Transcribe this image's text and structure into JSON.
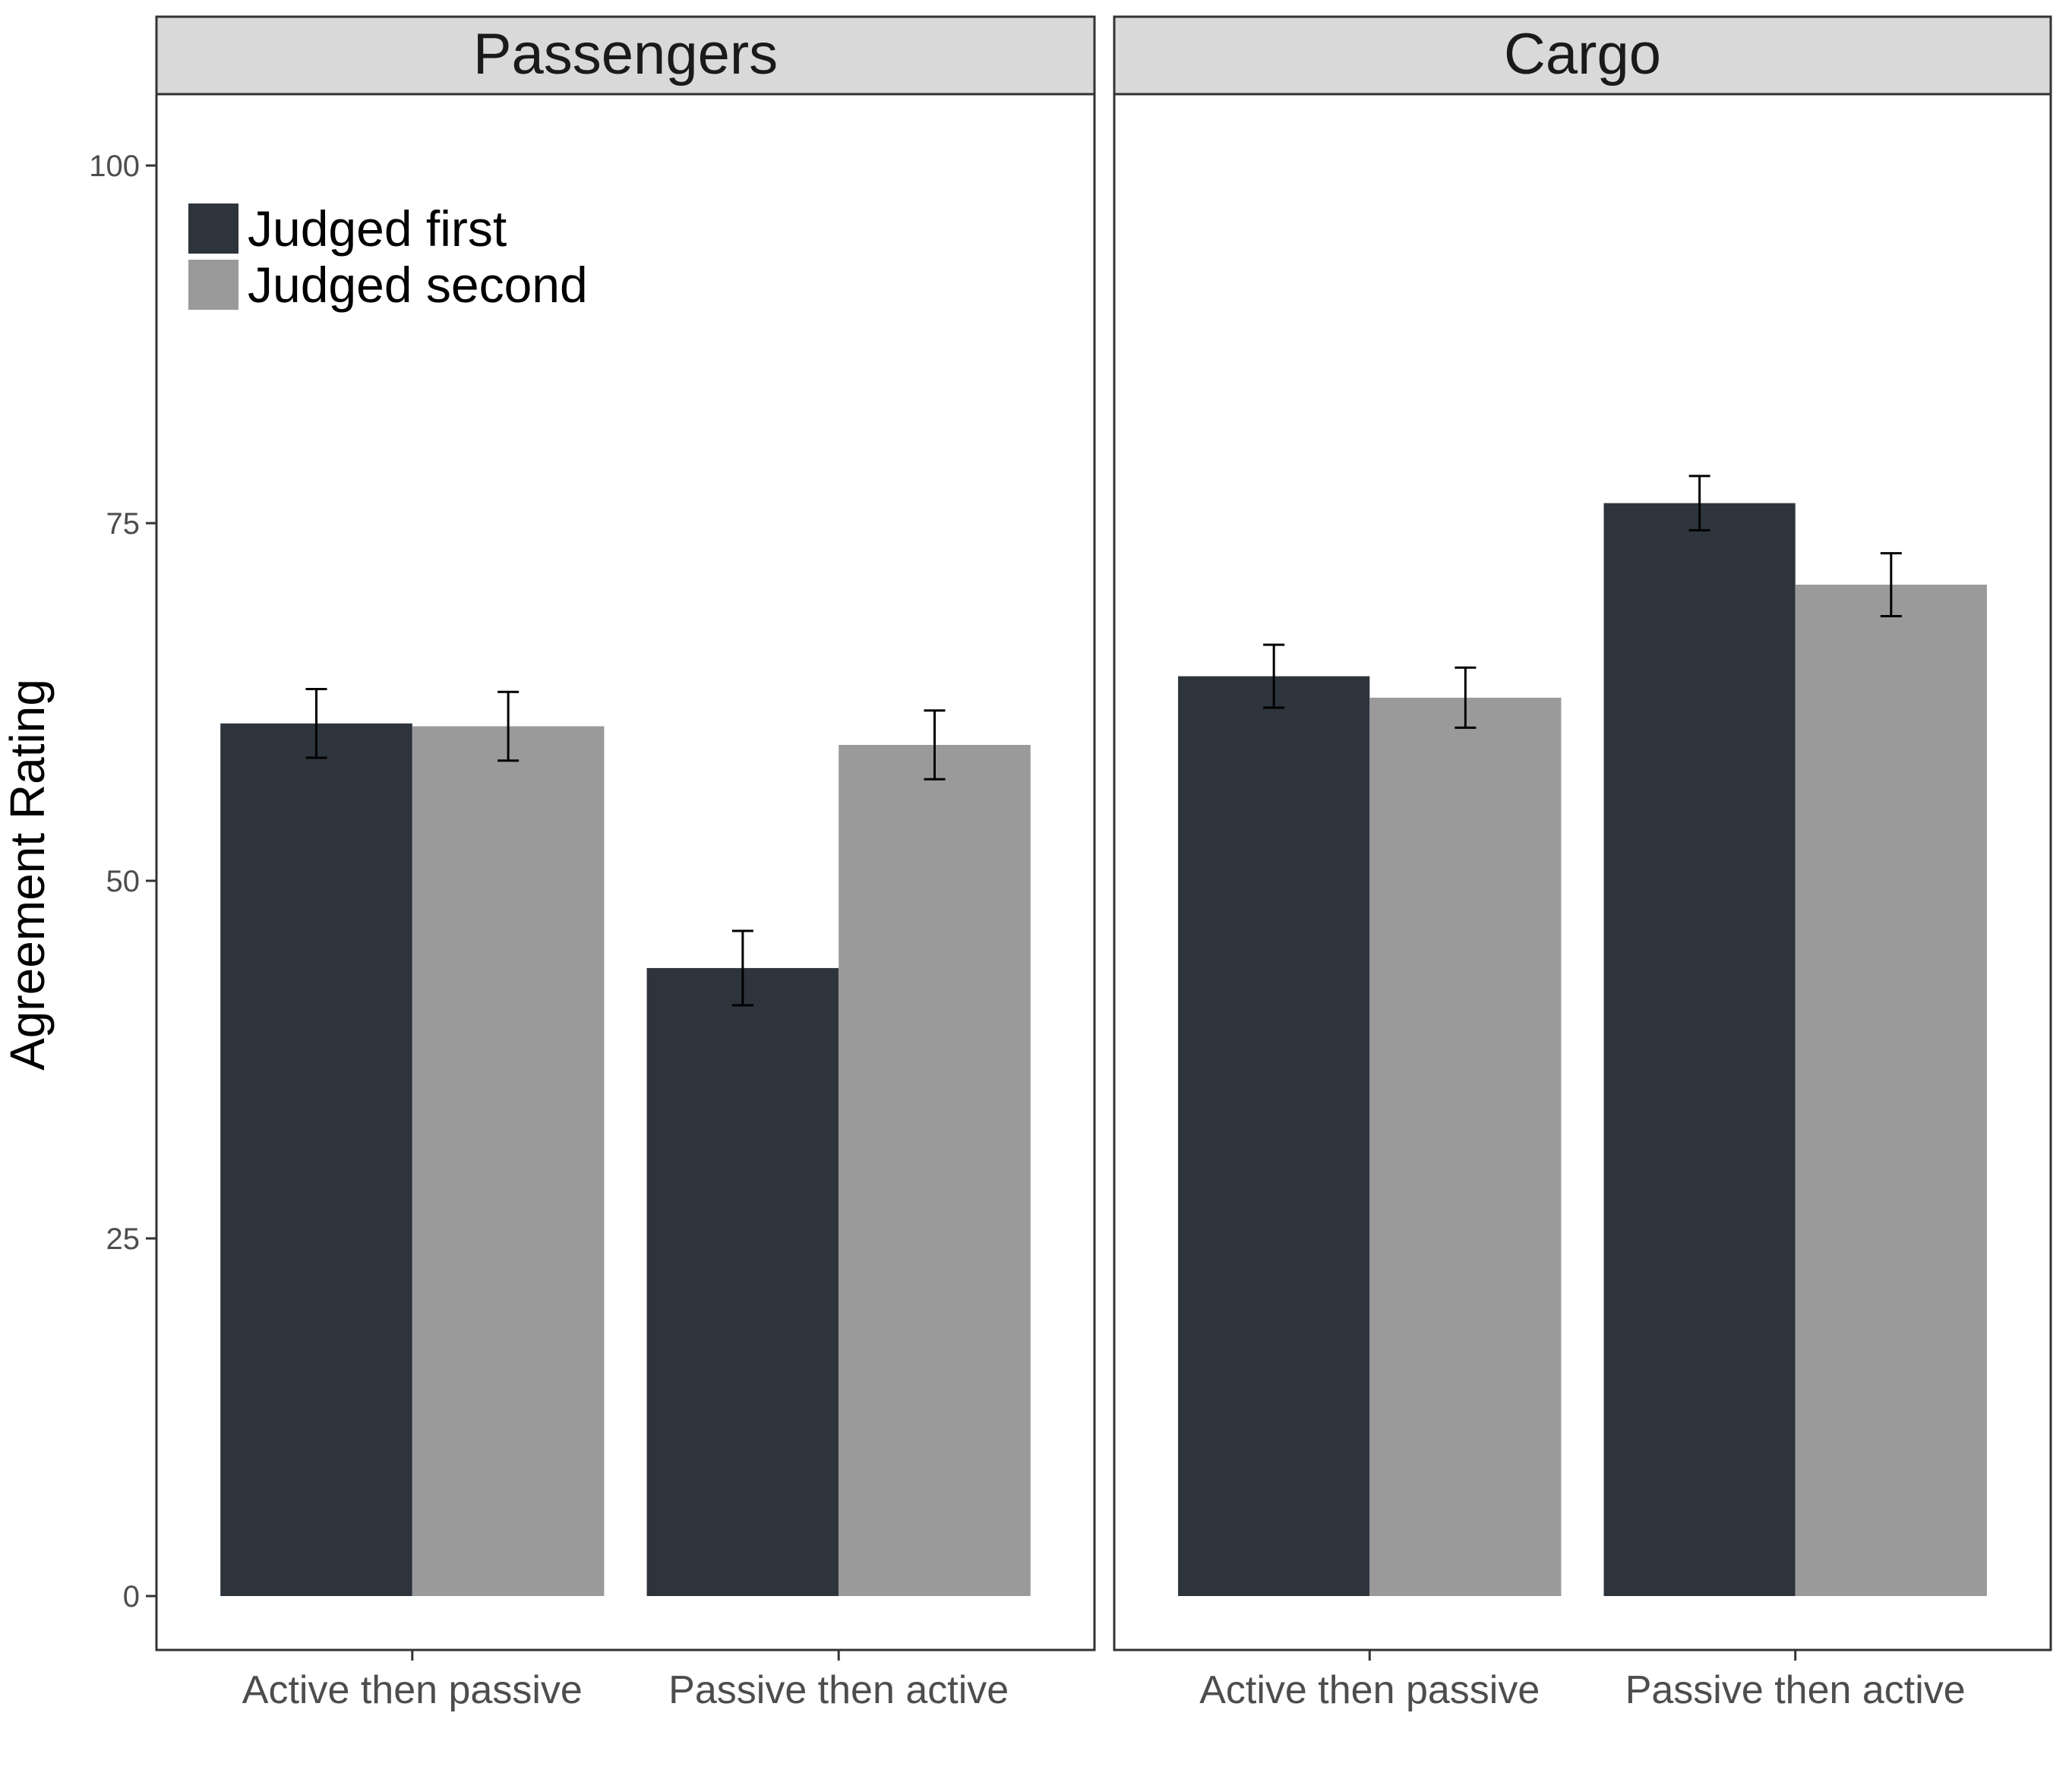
{
  "chart_data": {
    "type": "bar",
    "ylabel": "Agreement Rating",
    "xlabel": "",
    "ylim": [
      -4,
      105
    ],
    "yticks": [
      0,
      25,
      50,
      75,
      100
    ],
    "grid": false,
    "legend": {
      "placement": "top-left",
      "entries": [
        {
          "label": "Judged first",
          "color": "#2e343c"
        },
        {
          "label": "Judged second",
          "color": "#9a9a9a"
        }
      ]
    },
    "categories": [
      "Active then passive",
      "Passive then active"
    ],
    "panels": [
      {
        "title": "Passengers",
        "series": [
          {
            "name": "Judged first",
            "color": "#2e343c",
            "values": [
              61.0,
              43.9
            ],
            "errors": [
              2.4,
              2.6
            ]
          },
          {
            "name": "Judged second",
            "color": "#9a9a9a",
            "values": [
              60.8,
              59.5
            ],
            "errors": [
              2.4,
              2.4
            ]
          }
        ]
      },
      {
        "title": "Cargo",
        "series": [
          {
            "name": "Judged first",
            "color": "#2e343c",
            "values": [
              64.3,
              76.4
            ],
            "errors": [
              2.2,
              1.9
            ]
          },
          {
            "name": "Judged second",
            "color": "#9a9a9a",
            "values": [
              62.8,
              70.7
            ],
            "errors": [
              2.1,
              2.2
            ]
          }
        ]
      }
    ]
  }
}
